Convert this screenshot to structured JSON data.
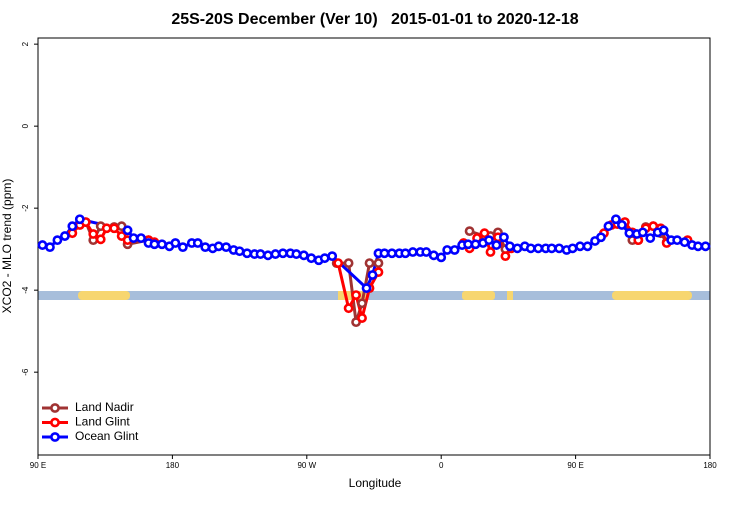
{
  "chart_data": {
    "type": "line",
    "title": "25S-20S December (Ver 10)   2015-01-01 to 2020-12-18",
    "x_label": "Longitude",
    "y_label": "XCO2 - MLO trend (ppm)",
    "xlim": [
      90,
      540
    ],
    "ylim": [
      -8.02,
      2.15
    ],
    "xticks": [
      {
        "value": 90,
        "label": "90 E"
      },
      {
        "value": 180,
        "label": "180"
      },
      {
        "value": 270,
        "label": "90 W"
      },
      {
        "value": 360,
        "label": "0"
      },
      {
        "value": 450,
        "label": "90 E"
      },
      {
        "value": 540,
        "label": "180"
      }
    ],
    "yticks": [
      2,
      0,
      -2,
      -4,
      -6
    ],
    "legend": "bottom-left",
    "series": [
      {
        "name": "Land Nadir",
        "color": "#a03333",
        "x": [
          122,
          127,
          132,
          141,
          146,
          150,
          164,
          null,
          290,
          298,
          303,
          307,
          312,
          318,
          null,
          379,
          389,
          393,
          398,
          403,
          null,
          483,
          488,
          492,
          497,
          502,
          507,
          511,
          525
        ],
        "values": [
          -2.34,
          -2.78,
          -2.44,
          -2.46,
          -2.44,
          -2.88,
          -2.78,
          null,
          -3.34,
          -3.34,
          -4.78,
          -4.32,
          -3.34,
          -3.34,
          null,
          -2.56,
          -2.68,
          -2.68,
          -2.59,
          -3.0,
          null,
          -2.34,
          -2.78,
          -2.78,
          -2.46,
          -2.44,
          -2.61,
          -2.83,
          -2.8
        ]
      },
      {
        "name": "Land Glint",
        "color": "#ff0000",
        "x": [
          113,
          118,
          122,
          127,
          132,
          136,
          141,
          146,
          150,
          164,
          168,
          null,
          291,
          298,
          303,
          307,
          312,
          318,
          null,
          375,
          379,
          384,
          389,
          393,
          398,
          403,
          407,
          null,
          469,
          474,
          478,
          483,
          488,
          492,
          497,
          502,
          507,
          511,
          525
        ],
        "values": [
          -2.61,
          -2.41,
          -2.34,
          -2.63,
          -2.76,
          -2.49,
          -2.49,
          -2.68,
          -2.78,
          -2.78,
          -2.83,
          null,
          -3.34,
          -4.44,
          -4.12,
          -4.68,
          -3.95,
          -3.56,
          null,
          -2.85,
          -2.98,
          -2.73,
          -2.61,
          -3.07,
          -2.71,
          -3.17,
          -2.98,
          null,
          -2.61,
          -2.41,
          -2.39,
          -2.34,
          -2.59,
          -2.78,
          -2.49,
          -2.44,
          -2.49,
          -2.85,
          -2.78
        ]
      },
      {
        "name": "Ocean Glint",
        "color": "#0000ff",
        "x": [
          93,
          98,
          103,
          108,
          113,
          118,
          150,
          154,
          159,
          164,
          168,
          173,
          178,
          182,
          187,
          193,
          197,
          202,
          207,
          211,
          216,
          221,
          225,
          230,
          235,
          239,
          244,
          249,
          254,
          259,
          263,
          268,
          273,
          278,
          282,
          287,
          310,
          314,
          318,
          322,
          327,
          332,
          336,
          341,
          346,
          350,
          355,
          360,
          364,
          369,
          374,
          378,
          383,
          388,
          392,
          397,
          402,
          406,
          411,
          416,
          420,
          425,
          430,
          434,
          439,
          444,
          448,
          453,
          458,
          463,
          467,
          472,
          477,
          481,
          486,
          491,
          495,
          500,
          505,
          509,
          514,
          518,
          523,
          528,
          532,
          537
        ],
        "values": [
          -2.9,
          -2.95,
          -2.78,
          -2.68,
          -2.44,
          -2.27,
          -2.54,
          -2.73,
          -2.73,
          -2.85,
          -2.88,
          -2.88,
          -2.93,
          -2.85,
          -2.95,
          -2.85,
          -2.85,
          -2.95,
          -2.98,
          -2.93,
          -2.95,
          -3.02,
          -3.05,
          -3.1,
          -3.12,
          -3.12,
          -3.15,
          -3.12,
          -3.1,
          -3.1,
          -3.12,
          -3.15,
          -3.22,
          -3.27,
          -3.22,
          -3.17,
          -3.95,
          -3.63,
          -3.1,
          -3.1,
          -3.1,
          -3.1,
          -3.1,
          -3.07,
          -3.07,
          -3.07,
          -3.15,
          -3.2,
          -3.02,
          -3.02,
          -2.9,
          -2.88,
          -2.88,
          -2.85,
          -2.78,
          -2.9,
          -2.71,
          -2.93,
          -2.98,
          -2.93,
          -2.98,
          -2.98,
          -2.98,
          -2.98,
          -2.98,
          -3.02,
          -2.98,
          -2.93,
          -2.93,
          -2.8,
          -2.71,
          -2.44,
          -2.27,
          -2.41,
          -2.61,
          -2.63,
          -2.59,
          -2.73,
          -2.59,
          -2.54,
          -2.78,
          -2.78,
          -2.83,
          -2.9,
          -2.93,
          -2.93
        ]
      }
    ]
  }
}
